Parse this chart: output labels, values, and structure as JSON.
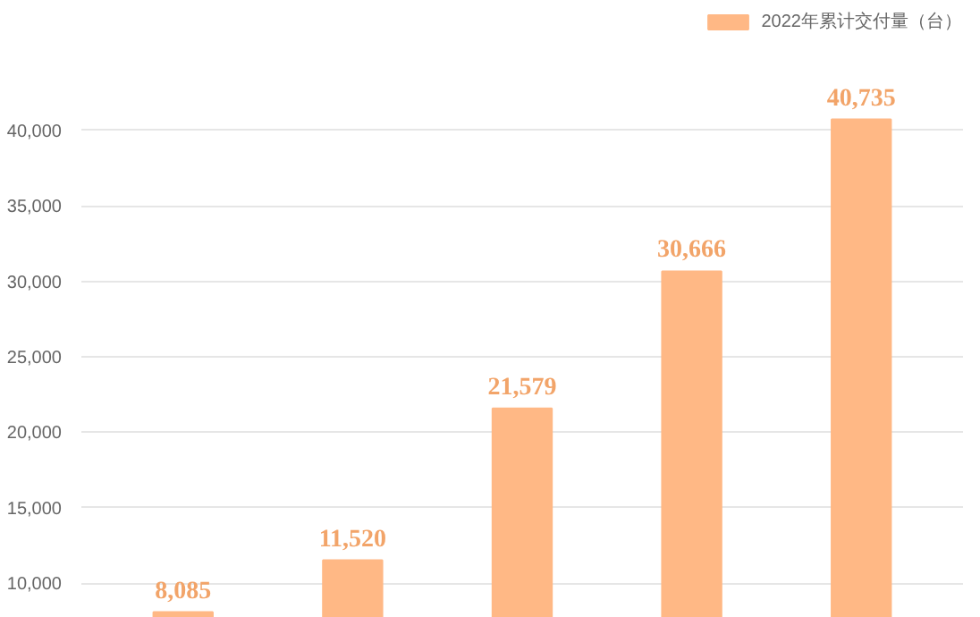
{
  "chart_data": {
    "type": "bar",
    "categories": [
      null,
      null,
      null,
      null,
      null
    ],
    "series": [
      {
        "name": "2022年累计交付量（台）",
        "color": "#ffb885",
        "values": [
          8085,
          11520,
          21579,
          30666,
          40735
        ]
      }
    ],
    "value_labels": [
      "8,085",
      "11,520",
      "21,579",
      "30,666",
      "40,735"
    ],
    "ylim": [
      7700,
      48000
    ],
    "yticks": [
      {
        "value": 10000,
        "label": "10,000"
      },
      {
        "value": 15000,
        "label": "15,000"
      },
      {
        "value": 20000,
        "label": "20,000"
      },
      {
        "value": 25000,
        "label": "25,000"
      },
      {
        "value": 30000,
        "label": "30,000"
      },
      {
        "value": 35000,
        "label": "35,000"
      },
      {
        "value": 40000,
        "label": "40,000"
      }
    ],
    "grid": "y",
    "legend": "top right"
  }
}
